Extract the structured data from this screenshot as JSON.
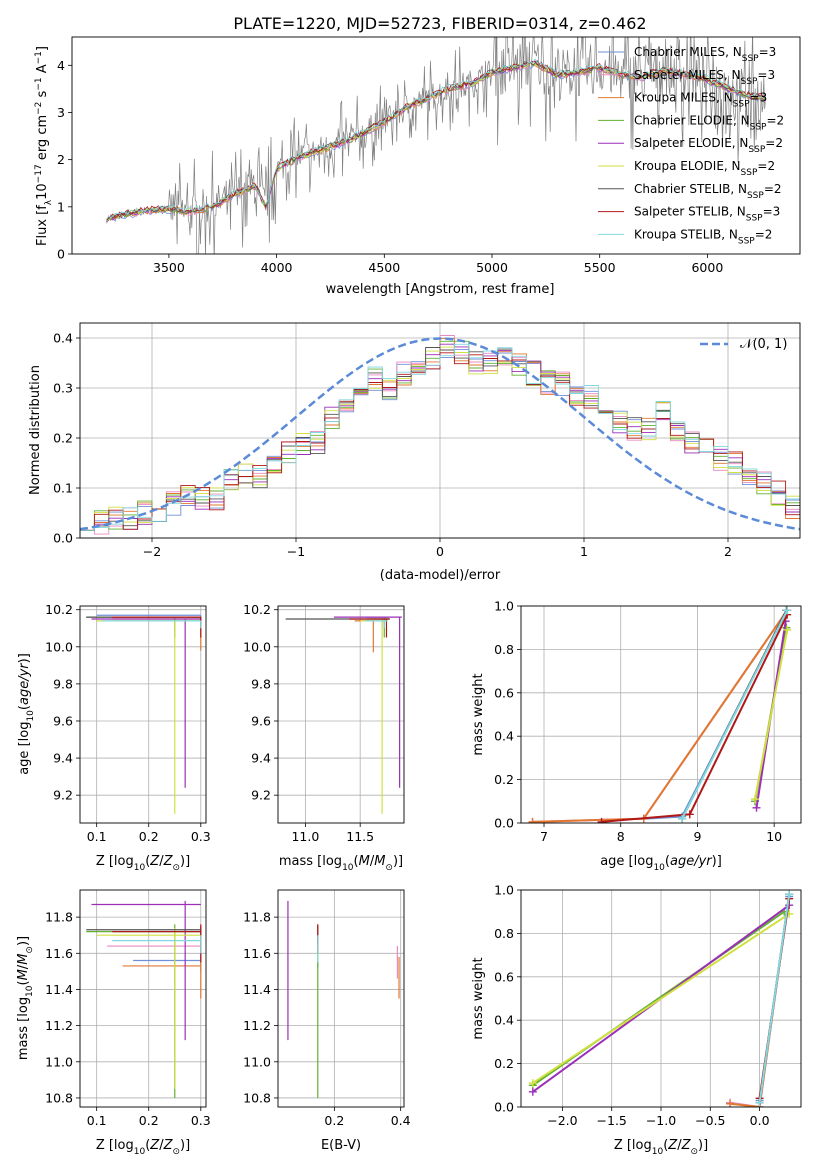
{
  "figure_title": "PLATE=1220, MJD=52723, FIBERID=0314, z=0.462",
  "models": [
    {
      "name": "Chabrier MILES",
      "nssp": "3",
      "color": "#6f8fd8"
    },
    {
      "name": "Salpeter MILES",
      "nssp": "3",
      "color": "#e88ac0"
    },
    {
      "name": "Kroupa MILES",
      "nssp": "3",
      "color": "#e07830"
    },
    {
      "name": "Chabrier ELODIE",
      "nssp": "2",
      "color": "#62b030"
    },
    {
      "name": "Salpeter ELODIE",
      "nssp": "2",
      "color": "#9b2fb8"
    },
    {
      "name": "Kroupa ELODIE",
      "nssp": "2",
      "color": "#d0e040"
    },
    {
      "name": "Chabrier STELIB",
      "nssp": "2",
      "color": "#555555"
    },
    {
      "name": "Salpeter STELIB",
      "nssp": "3",
      "color": "#b01818"
    },
    {
      "name": "Kroupa STELIB",
      "nssp": "2",
      "color": "#80d8e0"
    }
  ],
  "chart_data": [
    {
      "id": "spectrum",
      "type": "line",
      "xlabel_pre": "wavelength [Angstrom, rest frame]",
      "ylabel_parts": {
        "a": "Flux [f",
        "b": "λ",
        "c": "10",
        "d": "−17",
        "e": " erg cm",
        "f": "−2",
        "g": " s",
        "h": "−1",
        "i": " A",
        "j": "−1",
        "k": "]"
      },
      "xlim": [
        3050,
        6430
      ],
      "ylim": [
        0,
        4.6
      ],
      "xticks": [
        3500,
        4000,
        4500,
        5000,
        5500,
        6000
      ],
      "yticks": [
        0,
        1,
        2,
        3,
        4
      ],
      "data_color": "#808080",
      "data_range": [
        3210,
        6270
      ],
      "model_knots": {
        "x": [
          3210,
          3300,
          3400,
          3500,
          3600,
          3700,
          3800,
          3900,
          3950,
          4000,
          4100,
          4200,
          4300,
          4400,
          4500,
          4600,
          4700,
          4800,
          4900,
          5000,
          5100,
          5200,
          5300,
          5400,
          5500,
          5600,
          5700,
          5800,
          5900,
          6000,
          6100,
          6200,
          6270
        ],
        "y": [
          0.75,
          0.85,
          0.92,
          0.95,
          0.9,
          1.0,
          1.25,
          1.45,
          1.0,
          1.8,
          2.05,
          2.2,
          2.35,
          2.55,
          2.8,
          3.1,
          3.3,
          3.5,
          3.6,
          3.85,
          3.95,
          4.05,
          3.8,
          3.85,
          3.95,
          3.8,
          3.75,
          3.9,
          3.8,
          3.7,
          3.5,
          3.35,
          3.3
        ]
      }
    },
    {
      "id": "residuals",
      "type": "histogram",
      "xlabel": "(data-model)/error",
      "ylabel": "Normed distribution",
      "xlim": [
        -2.5,
        2.5
      ],
      "ylim": [
        0,
        0.43
      ],
      "xticks": [
        -2,
        -1,
        0,
        1,
        2
      ],
      "yticks": [
        0.0,
        0.1,
        0.2,
        0.3,
        0.4
      ],
      "legend": "𝒩(0, 1)",
      "normal_color": "#5b8bd8",
      "bin_edges": [
        -2.5,
        -2.4,
        -2.3,
        -2.2,
        -2.1,
        -2.0,
        -1.9,
        -1.8,
        -1.7,
        -1.6,
        -1.5,
        -1.4,
        -1.3,
        -1.2,
        -1.1,
        -1.0,
        -0.9,
        -0.8,
        -0.7,
        -0.6,
        -0.5,
        -0.4,
        -0.3,
        -0.2,
        -0.1,
        0.0,
        0.1,
        0.2,
        0.3,
        0.4,
        0.5,
        0.6,
        0.7,
        0.8,
        0.9,
        1.0,
        1.1,
        1.2,
        1.3,
        1.4,
        1.5,
        1.6,
        1.7,
        1.8,
        1.9,
        2.0,
        2.1,
        2.2,
        2.3,
        2.4,
        2.5
      ],
      "base_values": [
        0.04,
        0.03,
        0.04,
        0.04,
        0.05,
        0.05,
        0.07,
        0.08,
        0.08,
        0.08,
        0.12,
        0.13,
        0.12,
        0.15,
        0.17,
        0.19,
        0.19,
        0.24,
        0.26,
        0.28,
        0.32,
        0.3,
        0.33,
        0.33,
        0.36,
        0.38,
        0.37,
        0.35,
        0.35,
        0.36,
        0.35,
        0.33,
        0.31,
        0.31,
        0.28,
        0.28,
        0.25,
        0.23,
        0.22,
        0.22,
        0.25,
        0.21,
        0.19,
        0.18,
        0.16,
        0.15,
        0.12,
        0.11,
        0.09,
        0.06
      ]
    },
    {
      "id": "z_age",
      "type": "errorbar",
      "xlabel_pre": "Z [log",
      "ylabel_pre": "age  [log",
      "xlim": [
        0.068,
        0.31
      ],
      "ylim": [
        9.05,
        10.22
      ],
      "xticks": [
        0.1,
        0.2,
        0.3
      ],
      "yticks": [
        9.2,
        9.4,
        9.6,
        9.8,
        10.0,
        10.2
      ],
      "points": [
        {
          "m": 0,
          "x": 0.3,
          "y": 10.17,
          "xl": 0.1,
          "xh": 0.3,
          "yl": 10.1,
          "yh": 10.17
        },
        {
          "m": 1,
          "x": 0.3,
          "y": 10.16,
          "xl": 0.12,
          "xh": 0.3,
          "yl": 10.12,
          "yh": 10.16
        },
        {
          "m": 2,
          "x": 0.3,
          "y": 10.15,
          "xl": 0.13,
          "xh": 0.3,
          "yl": 9.98,
          "yh": 10.15
        },
        {
          "m": 3,
          "x": 0.25,
          "y": 10.16,
          "xl": 0.08,
          "xh": 0.3,
          "yl": 10.05,
          "yh": 10.16
        },
        {
          "m": 4,
          "x": 0.27,
          "y": 10.15,
          "xl": 0.09,
          "xh": 0.3,
          "yl": 9.24,
          "yh": 10.15
        },
        {
          "m": 5,
          "x": 0.25,
          "y": 10.14,
          "xl": 0.1,
          "xh": 0.3,
          "yl": 9.1,
          "yh": 10.14
        },
        {
          "m": 6,
          "x": 0.3,
          "y": 10.16,
          "xl": 0.08,
          "xh": 0.3,
          "yl": 10.14,
          "yh": 10.16
        },
        {
          "m": 7,
          "x": 0.3,
          "y": 10.16,
          "xl": 0.13,
          "xh": 0.3,
          "yl": 10.05,
          "yh": 10.16
        },
        {
          "m": 8,
          "x": 0.3,
          "y": 10.14,
          "xl": 0.11,
          "xh": 0.3,
          "yl": 10.1,
          "yh": 10.14
        }
      ]
    },
    {
      "id": "mass_age",
      "type": "errorbar",
      "xlabel_pre": "mass [log",
      "xlim": [
        10.75,
        11.9
      ],
      "ylim": [
        9.05,
        10.22
      ],
      "xticks": [
        11.0,
        11.5
      ],
      "yticks": [
        9.2,
        9.4,
        9.6,
        9.8,
        10.0,
        10.2
      ],
      "points": [
        {
          "m": 0,
          "x": 11.72,
          "y": 10.16,
          "xl": 11.55,
          "xh": 11.76,
          "yl": 10.12,
          "yh": 10.16
        },
        {
          "m": 1,
          "x": 11.7,
          "y": 10.15,
          "xl": 11.6,
          "xh": 11.74,
          "yl": 10.1,
          "yh": 10.15
        },
        {
          "m": 2,
          "x": 11.62,
          "y": 10.14,
          "xl": 11.45,
          "xh": 11.66,
          "yl": 9.97,
          "yh": 10.14
        },
        {
          "m": 3,
          "x": 11.72,
          "y": 10.15,
          "xl": 11.56,
          "xh": 11.76,
          "yl": 10.05,
          "yh": 10.15
        },
        {
          "m": 4,
          "x": 11.86,
          "y": 10.16,
          "xl": 11.26,
          "xh": 11.88,
          "yl": 9.24,
          "yh": 10.16
        },
        {
          "m": 5,
          "x": 11.7,
          "y": 10.14,
          "xl": 11.5,
          "xh": 11.75,
          "yl": 9.1,
          "yh": 10.14
        },
        {
          "m": 6,
          "x": 11.74,
          "y": 10.15,
          "xl": 10.82,
          "xh": 11.77,
          "yl": 10.14,
          "yh": 10.15
        },
        {
          "m": 7,
          "x": 11.74,
          "y": 10.15,
          "xl": 11.4,
          "xh": 11.77,
          "yl": 10.05,
          "yh": 10.15
        },
        {
          "m": 8,
          "x": 11.72,
          "y": 10.14,
          "xl": 11.55,
          "xh": 11.75,
          "yl": 10.1,
          "yh": 10.14
        }
      ]
    },
    {
      "id": "age_weight",
      "type": "line",
      "xlabel_pre": "age  [log",
      "ylabel": "mass weight",
      "xlim": [
        6.7,
        10.35
      ],
      "ylim": [
        0,
        1.0
      ],
      "xticks": [
        7,
        8,
        9,
        10
      ],
      "yticks": [
        0.0,
        0.2,
        0.4,
        0.6,
        0.8,
        1.0
      ],
      "series": [
        {
          "m": 0,
          "x": [
            8.3,
            8.8,
            10.17
          ],
          "y": [
            0.02,
            0.03,
            0.98
          ]
        },
        {
          "m": 1,
          "x": [
            6.85,
            8.3,
            10.17
          ],
          "y": [
            0.005,
            0.02,
            0.98
          ]
        },
        {
          "m": 2,
          "x": [
            6.85,
            8.3,
            10.17
          ],
          "y": [
            0.005,
            0.02,
            0.98
          ]
        },
        {
          "m": 3,
          "x": [
            9.75,
            10.16
          ],
          "y": [
            0.1,
            0.9
          ]
        },
        {
          "m": 4,
          "x": [
            9.77,
            10.15
          ],
          "y": [
            0.07,
            0.93
          ]
        },
        {
          "m": 5,
          "x": [
            9.75,
            10.17
          ],
          "y": [
            0.11,
            0.89
          ]
        },
        {
          "m": 6,
          "x": [
            8.8,
            10.16
          ],
          "y": [
            0.02,
            0.98
          ]
        },
        {
          "m": 7,
          "x": [
            7.75,
            8.9,
            10.17
          ],
          "y": [
            0.005,
            0.04,
            0.96
          ]
        },
        {
          "m": 8,
          "x": [
            8.8,
            10.17
          ],
          "y": [
            0.02,
            0.98
          ]
        }
      ]
    },
    {
      "id": "z_mass",
      "type": "errorbar",
      "xlabel_pre": "Z [log",
      "ylabel_pre": "mass [log",
      "xlim": [
        0.068,
        0.31
      ],
      "ylim": [
        10.75,
        11.95
      ],
      "xticks": [
        0.1,
        0.2,
        0.3
      ],
      "yticks": [
        10.8,
        11.0,
        11.2,
        11.4,
        11.6,
        11.8
      ],
      "points": [
        {
          "m": 0,
          "x": 0.3,
          "y": 11.56,
          "xl": 0.17,
          "xh": 0.3,
          "yl": 11.5,
          "yh": 11.62
        },
        {
          "m": 1,
          "x": 0.3,
          "y": 11.64,
          "xl": 0.12,
          "xh": 0.3,
          "yl": 11.6,
          "yh": 11.68
        },
        {
          "m": 2,
          "x": 0.3,
          "y": 11.53,
          "xl": 0.15,
          "xh": 0.3,
          "yl": 11.35,
          "yh": 11.58
        },
        {
          "m": 3,
          "x": 0.25,
          "y": 11.72,
          "xl": 0.08,
          "xh": 0.3,
          "yl": 10.8,
          "yh": 11.76
        },
        {
          "m": 4,
          "x": 0.27,
          "y": 11.87,
          "xl": 0.09,
          "xh": 0.3,
          "yl": 11.12,
          "yh": 11.89
        },
        {
          "m": 5,
          "x": 0.25,
          "y": 11.7,
          "xl": 0.1,
          "xh": 0.3,
          "yl": 10.85,
          "yh": 11.74
        },
        {
          "m": 6,
          "x": 0.3,
          "y": 11.73,
          "xl": 0.08,
          "xh": 0.3,
          "yl": 11.7,
          "yh": 11.75
        },
        {
          "m": 7,
          "x": 0.3,
          "y": 11.72,
          "xl": 0.13,
          "xh": 0.3,
          "yl": 11.55,
          "yh": 11.76
        },
        {
          "m": 8,
          "x": 0.3,
          "y": 11.67,
          "xl": 0.13,
          "xh": 0.3,
          "yl": 11.6,
          "yh": 11.7
        }
      ]
    },
    {
      "id": "ebv_mass",
      "type": "errorbar",
      "xlabel": "E(B-V)",
      "xlim": [
        0.03,
        0.41
      ],
      "ylim": [
        10.75,
        11.95
      ],
      "xticks": [
        0.2,
        0.4
      ],
      "yticks": [
        10.8,
        11.0,
        11.2,
        11.4,
        11.6,
        11.8
      ],
      "points": [
        {
          "m": 0,
          "x": 0.15,
          "y": 11.56,
          "xl": 0.15,
          "xh": 0.15,
          "yl": 11.52,
          "yh": 11.62
        },
        {
          "m": 1,
          "x": 0.39,
          "y": 11.6,
          "xl": 0.39,
          "xh": 0.39,
          "yl": 11.46,
          "yh": 11.64
        },
        {
          "m": 2,
          "x": 0.395,
          "y": 11.53,
          "xl": 0.395,
          "xh": 0.395,
          "yl": 11.35,
          "yh": 11.58
        },
        {
          "m": 3,
          "x": 0.15,
          "y": 11.72,
          "xl": 0.15,
          "xh": 0.15,
          "yl": 10.8,
          "yh": 11.76
        },
        {
          "m": 4,
          "x": 0.06,
          "y": 11.87,
          "xl": 0.06,
          "xh": 0.06,
          "yl": 11.12,
          "yh": 11.89
        },
        {
          "m": 5,
          "x": 0.15,
          "y": 11.7,
          "xl": 0.15,
          "xh": 0.15,
          "yl": 11.55,
          "yh": 11.74
        },
        {
          "m": 6,
          "x": 0.15,
          "y": 11.73,
          "xl": 0.15,
          "xh": 0.15,
          "yl": 11.65,
          "yh": 11.75
        },
        {
          "m": 7,
          "x": 0.15,
          "y": 11.72,
          "xl": 0.15,
          "xh": 0.15,
          "yl": 11.6,
          "yh": 11.76
        },
        {
          "m": 8,
          "x": 0.15,
          "y": 11.67,
          "xl": 0.15,
          "xh": 0.15,
          "yl": 11.55,
          "yh": 11.7
        }
      ]
    },
    {
      "id": "z_weight",
      "type": "line",
      "xlabel_pre": "Z [log",
      "ylabel": "mass weight",
      "xlim": [
        -2.42,
        0.42
      ],
      "ylim": [
        0,
        1.0
      ],
      "xticks": [
        -2.0,
        -1.5,
        -1.0,
        -0.5,
        0.0
      ],
      "yticks": [
        0.0,
        0.2,
        0.4,
        0.6,
        0.8,
        1.0
      ],
      "series": [
        {
          "m": 0,
          "x": [
            0.0,
            0.3
          ],
          "y": [
            0.03,
            0.97
          ]
        },
        {
          "m": 1,
          "x": [
            -0.3,
            0.0,
            0.3
          ],
          "y": [
            0.02,
            0.0,
            0.98
          ]
        },
        {
          "m": 2,
          "x": [
            -0.3,
            0.0,
            0.3
          ],
          "y": [
            0.015,
            0.0,
            0.98
          ]
        },
        {
          "m": 3,
          "x": [
            -2.3,
            0.25
          ],
          "y": [
            0.1,
            0.9
          ]
        },
        {
          "m": 4,
          "x": [
            -2.3,
            0.3
          ],
          "y": [
            0.07,
            0.93
          ]
        },
        {
          "m": 5,
          "x": [
            -2.3,
            0.3
          ],
          "y": [
            0.11,
            0.89
          ]
        },
        {
          "m": 6,
          "x": [
            0.0,
            0.3
          ],
          "y": [
            0.02,
            0.98
          ]
        },
        {
          "m": 7,
          "x": [
            0.0,
            0.3
          ],
          "y": [
            0.04,
            0.96
          ]
        },
        {
          "m": 8,
          "x": [
            0.0,
            0.3
          ],
          "y": [
            0.02,
            0.98
          ]
        }
      ]
    }
  ]
}
